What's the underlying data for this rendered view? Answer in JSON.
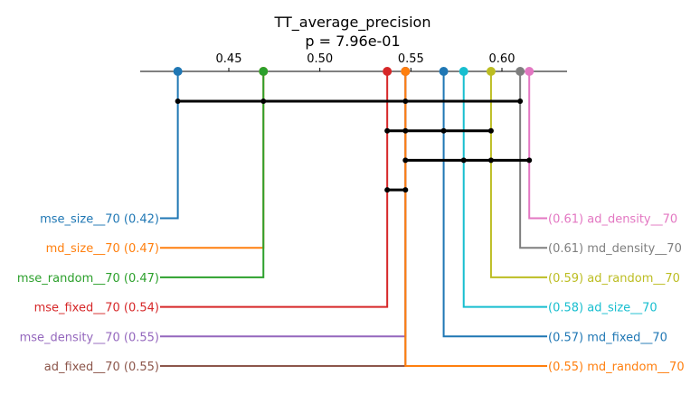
{
  "chart_data": {
    "type": "critical_difference_diagram",
    "title": "TT_average_precision",
    "subtitle": "p = 7.96e-01",
    "xlim": [
      0.4,
      0.635
    ],
    "ticks": [
      0.45,
      0.5,
      0.55,
      0.6
    ],
    "tick_labels": [
      "0.45",
      "0.50",
      "0.55",
      "0.60"
    ],
    "methods": [
      {
        "name": "mse_size__70",
        "value": 0.422,
        "label": "mse_size__70 (0.42)",
        "color": "#1f77b4",
        "side": "left"
      },
      {
        "name": "md_size__70",
        "value": 0.469,
        "label": "md_size__70 (0.47)",
        "color": "#ff7f0e",
        "side": "left"
      },
      {
        "name": "mse_random__70",
        "value": 0.469,
        "label": "mse_random__70 (0.47)",
        "color": "#2ca02c",
        "side": "left"
      },
      {
        "name": "mse_fixed__70",
        "value": 0.537,
        "label": "mse_fixed__70 (0.54)",
        "color": "#d62728",
        "side": "left"
      },
      {
        "name": "mse_density__70",
        "value": 0.547,
        "label": "mse_density__70 (0.55)",
        "color": "#9467bd",
        "side": "left"
      },
      {
        "name": "ad_fixed__70",
        "value": 0.547,
        "label": "ad_fixed__70 (0.55)",
        "color": "#8c564b",
        "side": "left"
      },
      {
        "name": "ad_density__70",
        "value": 0.615,
        "label": "(0.61) ad_density__70",
        "color": "#e377c2",
        "side": "right"
      },
      {
        "name": "md_density__70",
        "value": 0.61,
        "label": "(0.61) md_density__70",
        "color": "#7f7f7f",
        "side": "right"
      },
      {
        "name": "ad_random__70",
        "value": 0.594,
        "label": "(0.59) ad_random__70",
        "color": "#bcbd22",
        "side": "right"
      },
      {
        "name": "ad_size__70",
        "value": 0.579,
        "label": "(0.58) ad_size__70",
        "color": "#17becf",
        "side": "right"
      },
      {
        "name": "md_fixed__70",
        "value": 0.568,
        "label": "(0.57) md_fixed__70",
        "color": "#1f77b4",
        "side": "right"
      },
      {
        "name": "md_random__70",
        "value": 0.547,
        "label": "(0.55) md_random__70",
        "color": "#ff7f0e",
        "side": "right"
      }
    ],
    "groups": [
      {
        "values": [
          0.422,
          0.469,
          0.547,
          0.61
        ]
      },
      {
        "values": [
          0.537,
          0.547,
          0.568,
          0.594
        ]
      },
      {
        "values": [
          0.547,
          0.579,
          0.594,
          0.615
        ]
      },
      {
        "values": [
          0.537,
          0.547
        ]
      }
    ]
  }
}
